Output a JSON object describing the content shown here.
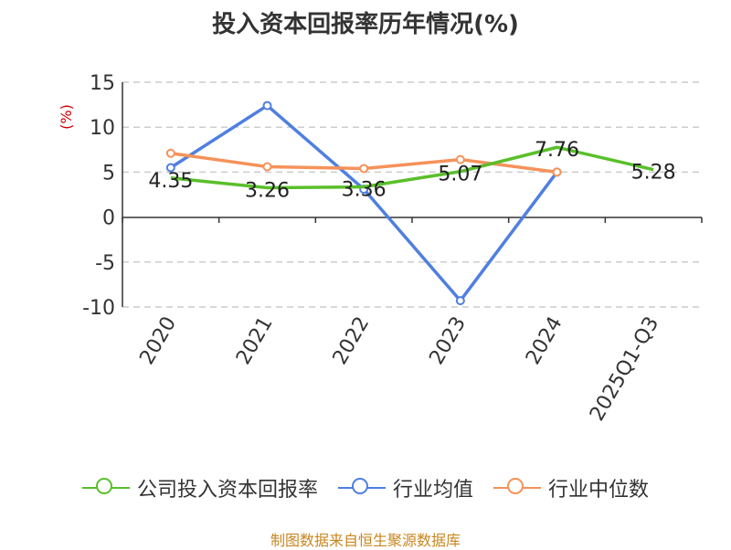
{
  "colors": {
    "company": "#5abf2a",
    "industry_avg": "#4f7fe0",
    "industry_median": "#f5925a",
    "ylabel": "#d00000",
    "source": "#c8861f",
    "grid": "#cccccc",
    "axis": "#333333"
  },
  "title": "投入资本回报率历年情况(%)",
  "source_text": "制图数据来自恒生聚源数据库",
  "legend": [
    {
      "label": "公司投入资本回报率",
      "color_key": "company"
    },
    {
      "label": "行业均值",
      "color_key": "industry_avg"
    },
    {
      "label": "行业中位数",
      "color_key": "industry_median"
    }
  ],
  "chart_data": {
    "type": "line",
    "title": "投入资本回报率历年情况(%)",
    "xlabel": "",
    "ylabel": "(%)",
    "categories": [
      "2020",
      "2021",
      "2022",
      "2023",
      "2024",
      "2025Q1-Q3"
    ],
    "ylim": [
      -10,
      15
    ],
    "yticks": [
      15,
      10,
      5,
      0,
      -5,
      -10
    ],
    "grid": true,
    "legend_position": "bottom",
    "series": [
      {
        "name": "公司投入资本回报率",
        "values": [
          4.35,
          3.26,
          3.36,
          5.07,
          7.76,
          5.28
        ],
        "show_labels": true,
        "markers": false
      },
      {
        "name": "行业均值",
        "values": [
          5.5,
          12.4,
          3.1,
          -9.3,
          5.0,
          null
        ],
        "show_labels": false,
        "markers": true
      },
      {
        "name": "行业中位数",
        "values": [
          7.1,
          5.6,
          5.4,
          6.4,
          5.0,
          null
        ],
        "show_labels": false,
        "markers": true
      }
    ],
    "data_labels": [
      "4.35",
      "3.26",
      "3.36",
      "5.07",
      "7.76",
      "5.28"
    ]
  }
}
